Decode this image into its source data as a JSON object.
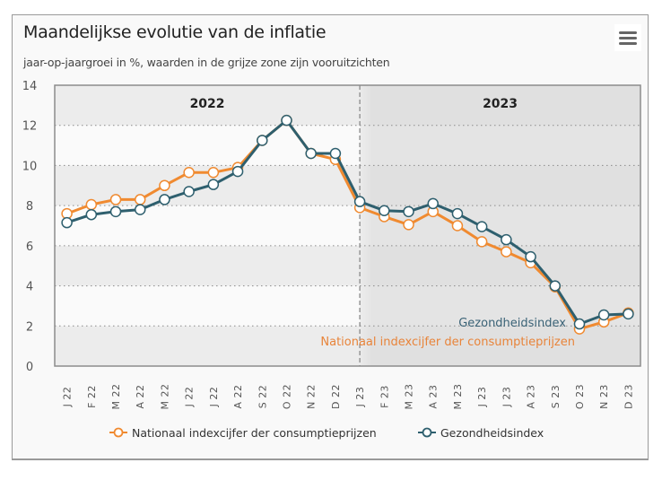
{
  "header": {
    "title": "Maandelijkse evolutie van de inflatie",
    "subtitle": "jaar-op-jaargroei in %, waarden in de grijze zone zijn vooruitzichten",
    "menu_icon": "hamburger-menu-icon"
  },
  "colors": {
    "nationaal": "#f08a30",
    "gezondheid": "#2e5f6e",
    "gezondheid_label": "#3a6276",
    "nationaal_label": "#e8843a",
    "forecast_band": "#dcdcdc"
  },
  "legend": {
    "items": [
      {
        "label": "Nationaal indexcijfer der consumptieprijzen"
      },
      {
        "label": "Gezondheidsindex"
      }
    ]
  },
  "chart_data": {
    "type": "line",
    "title": "Maandelijkse evolutie van de inflatie",
    "subtitle": "jaar-op-jaargroei in %, waarden in de grijze zone zijn vooruitzichten",
    "xlabel": "",
    "ylabel": "",
    "ylim": [
      0,
      14
    ],
    "yticks": [
      "0",
      "2",
      "4",
      "6",
      "8",
      "10",
      "12",
      "14"
    ],
    "grid": true,
    "legend_position": "bottom-center",
    "categories": [
      "J 22",
      "F 22",
      "M 22",
      "A 22",
      "M 22",
      "J 22",
      "J 22",
      "A 22",
      "S 22",
      "O 22",
      "N 22",
      "D 22",
      "J 23",
      "F 23",
      "M 23",
      "A 23",
      "M 23",
      "J 23",
      "J 23",
      "A 23",
      "S 23",
      "O 23",
      "N 23",
      "D 23"
    ],
    "year_labels": [
      {
        "label": "2022",
        "from": 0,
        "to": 11
      },
      {
        "label": "2023",
        "from": 12,
        "to": 23
      }
    ],
    "forecast_from_index": 12,
    "series": [
      {
        "name": "Nationaal indexcijfer der consumptieprijzen",
        "end_label": "Nationaal indexcijfer der consumptieprijzen",
        "values": [
          7.6,
          8.05,
          8.3,
          8.3,
          9.0,
          9.65,
          9.65,
          9.9,
          11.25,
          12.25,
          10.6,
          10.3,
          7.9,
          7.45,
          7.05,
          7.7,
          7.0,
          6.2,
          5.7,
          5.15,
          3.95,
          1.85,
          2.2,
          2.65
        ]
      },
      {
        "name": "Gezondheidsindex",
        "end_label": "Gezondheidsindex",
        "values": [
          7.15,
          7.55,
          7.7,
          7.8,
          8.3,
          8.7,
          9.05,
          9.7,
          11.25,
          12.25,
          10.6,
          10.6,
          8.2,
          7.75,
          7.7,
          8.1,
          7.6,
          6.95,
          6.3,
          5.45,
          4.0,
          2.1,
          2.55,
          2.6
        ]
      }
    ]
  }
}
